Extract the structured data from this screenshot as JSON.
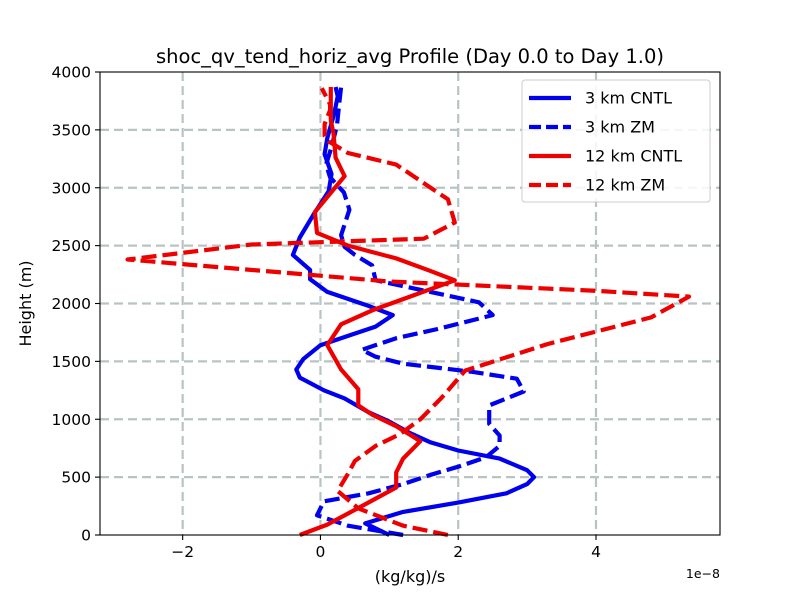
{
  "chart_data": {
    "type": "line",
    "title": "shoc_qv_tend_horiz_avg Profile (Day 0.0 to Day 1.0)",
    "xlabel": "(kg/kg)/s",
    "ylabel": "Height (m)",
    "x_offset_label": "1e−8",
    "xlim": [
      -3.2,
      5.8
    ],
    "ylim": [
      0,
      4000
    ],
    "xticks": [
      -2,
      0,
      2,
      4
    ],
    "xtick_labels": [
      "−2",
      "0",
      "2",
      "4"
    ],
    "yticks": [
      0,
      500,
      1000,
      1500,
      2000,
      2500,
      3000,
      3500,
      4000
    ],
    "ytick_labels": [
      "0",
      "500",
      "1000",
      "1500",
      "2000",
      "2500",
      "3000",
      "3500",
      "4000"
    ],
    "grid": true,
    "legend_position": "top-right",
    "series": [
      {
        "name": "3 km CNTL",
        "color": "#0000ee",
        "style": "solid",
        "x": [
          1.0,
          0.65,
          1.2,
          2.0,
          2.7,
          3.0,
          3.1,
          3.0,
          2.6,
          2.0,
          1.6,
          1.3,
          1.0,
          0.7,
          0.35,
          0.05,
          -0.3,
          -0.35,
          -0.25,
          0.0,
          0.4,
          0.8,
          1.05,
          0.65,
          0.1,
          -0.15,
          -0.15,
          -0.4,
          -0.3,
          -0.1,
          0.0,
          0.12,
          0.16,
          0.06,
          0.1,
          0.2,
          0.25,
          0.22
        ],
        "y": [
          0,
          100,
          200,
          280,
          360,
          440,
          500,
          560,
          660,
          730,
          800,
          880,
          980,
          1060,
          1180,
          1250,
          1360,
          1430,
          1520,
          1640,
          1720,
          1800,
          1900,
          1990,
          2100,
          2210,
          2290,
          2420,
          2570,
          2770,
          2860,
          2970,
          3120,
          3290,
          3430,
          3640,
          3790,
          3870
        ]
      },
      {
        "name": "3 km ZM",
        "color": "#0000ee",
        "style": "dashed",
        "x": [
          1.2,
          0.4,
          -0.05,
          0.05,
          0.7,
          1.2,
          1.6,
          2.0,
          2.4,
          2.6,
          2.6,
          2.45,
          2.45,
          2.95,
          2.85,
          2.2,
          1.2,
          0.8,
          0.6,
          1.1,
          1.7,
          2.5,
          2.3,
          0.8,
          0.75,
          0.5,
          0.35,
          0.3,
          0.42,
          0.34,
          0.14,
          0.08,
          0.16,
          0.24,
          0.27,
          0.3
        ],
        "y": [
          0,
          80,
          170,
          290,
          360,
          440,
          520,
          590,
          670,
          770,
          860,
          960,
          1120,
          1240,
          1350,
          1410,
          1480,
          1540,
          1600,
          1700,
          1780,
          1900,
          2010,
          2200,
          2330,
          2420,
          2490,
          2590,
          2810,
          2960,
          3090,
          3200,
          3350,
          3540,
          3710,
          3870
        ]
      },
      {
        "name": "12 km CNTL",
        "color": "#ee0000",
        "style": "solid",
        "x": [
          -0.3,
          0.1,
          0.6,
          1.1,
          1.1,
          1.2,
          1.45,
          1.1,
          0.75,
          0.55,
          0.55,
          0.3,
          0.1,
          0.3,
          0.75,
          1.3,
          1.95,
          1.6,
          1.1,
          0.4,
          -0.05,
          -0.08,
          0.1,
          0.35,
          0.22,
          0.19,
          0.15,
          0.15,
          0.15
        ],
        "y": [
          0,
          90,
          250,
          410,
          540,
          660,
          810,
          940,
          1040,
          1120,
          1260,
          1430,
          1640,
          1820,
          1940,
          2060,
          2200,
          2280,
          2390,
          2500,
          2610,
          2790,
          2920,
          3100,
          3260,
          3470,
          3580,
          3700,
          3870
        ]
      },
      {
        "name": "12 km ZM",
        "color": "#ee0000",
        "style": "dashed",
        "x": [
          1.85,
          1.2,
          0.55,
          0.25,
          0.4,
          0.5,
          0.8,
          1.15,
          1.45,
          1.75,
          2.1,
          3.3,
          4.8,
          5.35,
          4.0,
          1.0,
          -2.8,
          -1.0,
          1.5,
          1.95,
          1.85,
          1.1,
          0.4,
          0.12,
          0.06,
          0.06,
          0.1,
          0.14,
          0.14,
          0.02
        ],
        "y": [
          0,
          80,
          230,
          380,
          530,
          640,
          770,
          870,
          1000,
          1180,
          1420,
          1650,
          1880,
          2060,
          2110,
          2190,
          2380,
          2510,
          2560,
          2700,
          2900,
          3200,
          3300,
          3400,
          3450,
          3550,
          3610,
          3670,
          3720,
          3860
        ]
      }
    ]
  }
}
